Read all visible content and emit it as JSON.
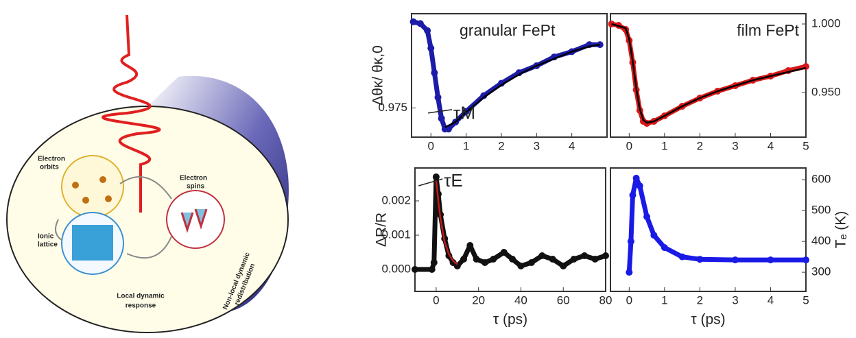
{
  "diagram": {
    "electron_orbits": [
      "Electron",
      "orbits"
    ],
    "electron_spins": [
      "Electron",
      "spins"
    ],
    "ionic_lattice": [
      "Ionic",
      "lattice"
    ],
    "local_response": [
      "Local dynamic",
      "response"
    ],
    "nonlocal": [
      "Non-local dynamic",
      "redistribution"
    ]
  },
  "chart_data": [
    {
      "type": "scatter",
      "title": "granular FePt",
      "y_label": "Δθκ/ θκ,0",
      "annotation": "τM",
      "y_axis_side": "left",
      "xlim": [
        -0.55,
        5.0
      ],
      "xticks": [
        0,
        1,
        2,
        3,
        4
      ],
      "ylim": [
        0.9667,
        1.0018
      ],
      "yticks": [
        0.975
      ],
      "series": [
        {
          "style": "markers",
          "color": "#1c1ca8",
          "x": [
            -0.5,
            -0.3,
            -0.1,
            0,
            0.1,
            0.2,
            0.3,
            0.4,
            0.5,
            0.7,
            1,
            1.5,
            2,
            2.5,
            3,
            3.5,
            4,
            4.5,
            4.8
          ],
          "values": [
            0.9995,
            0.999,
            0.997,
            0.992,
            0.985,
            0.978,
            0.972,
            0.969,
            0.969,
            0.971,
            0.974,
            0.9785,
            0.982,
            0.985,
            0.987,
            0.9895,
            0.991,
            0.993,
            0.993
          ]
        },
        {
          "style": "line",
          "color": "#000000",
          "x": [
            0.4,
            0.7,
            1,
            1.5,
            2,
            2.5,
            3,
            3.5,
            4,
            4.5,
            4.8
          ],
          "values": [
            0.9695,
            0.971,
            0.9738,
            0.978,
            0.9815,
            0.9845,
            0.987,
            0.989,
            0.991,
            0.9925,
            0.993
          ]
        }
      ]
    },
    {
      "type": "scatter",
      "title": "film FePt",
      "y_axis_side": "right",
      "xlim": [
        -0.53,
        5
      ],
      "xticks": [
        0,
        1,
        2,
        3,
        4,
        5
      ],
      "ylim": [
        0.9175,
        1.0075
      ],
      "yticks": [
        {
          "value": 1.0,
          "label": "1.000"
        },
        {
          "value": 0.95,
          "label": "0.950"
        }
      ],
      "series": [
        {
          "style": "markers",
          "color": "#d81818",
          "x": [
            -0.5,
            -0.3,
            -0.1,
            0,
            0.1,
            0.2,
            0.3,
            0.4,
            0.5,
            0.7,
            1,
            1.5,
            2,
            2.5,
            3,
            3.5,
            4,
            4.5,
            5
          ],
          "values": [
            1.0,
            0.999,
            0.996,
            0.988,
            0.972,
            0.952,
            0.937,
            0.929,
            0.9275,
            0.929,
            0.933,
            0.94,
            0.946,
            0.951,
            0.955,
            0.959,
            0.962,
            0.966,
            0.969
          ]
        },
        {
          "style": "line",
          "color": "#000000",
          "x": [
            -0.5,
            -0.1,
            0,
            0.1,
            0.2,
            0.3,
            0.4,
            0.5,
            0.7,
            1,
            1.5,
            2,
            2.5,
            3,
            3.5,
            4,
            4.5,
            5
          ],
          "values": [
            1.0,
            0.997,
            0.989,
            0.973,
            0.953,
            0.938,
            0.93,
            0.928,
            0.929,
            0.933,
            0.94,
            0.946,
            0.951,
            0.955,
            0.959,
            0.962,
            0.965,
            0.968
          ]
        }
      ]
    },
    {
      "type": "scatter",
      "y_label": "ΔR/R",
      "x_label": "τ (ps)",
      "annotation": "τE",
      "y_axis_side": "left",
      "xlim": [
        -10,
        80
      ],
      "xticks": [
        0,
        20,
        40,
        60,
        80
      ],
      "ylim": [
        -0.00064,
        0.00296
      ],
      "yticks": [
        {
          "value": 0,
          "label": "0.000"
        },
        {
          "value": 0.001,
          "label": "0.001"
        },
        {
          "value": 0.002,
          "label": "0.002"
        }
      ],
      "series": [
        {
          "style": "markers",
          "color": "#111111",
          "x": [
            -10,
            -2,
            -1,
            0,
            1,
            2,
            4,
            6,
            8,
            10,
            13,
            16,
            19,
            23,
            27,
            32,
            36,
            40,
            45,
            50,
            55,
            60,
            65,
            70,
            75,
            80
          ],
          "values": [
            0,
            0,
            0.0002,
            0.0027,
            0.0022,
            0.0016,
            0.0009,
            0.0004,
            0.0002,
            0.0001,
            0.0003,
            0.0007,
            0.0003,
            0.0002,
            0.0003,
            0.0005,
            0.0003,
            0.0001,
            0.0002,
            0.0004,
            0.0003,
            0.0001,
            0.0003,
            0.0004,
            0.0003,
            0.0004
          ]
        },
        {
          "style": "line",
          "color": "#c21a1a",
          "x": [
            0,
            1,
            2,
            4,
            6,
            8,
            10
          ],
          "values": [
            0.0026,
            0.002,
            0.0015,
            0.0008,
            0.00045,
            0.00025,
            0.00015
          ]
        }
      ]
    },
    {
      "type": "scatter",
      "y_label": "Tₑ (K)",
      "x_label": "τ (ps)",
      "y_axis_side": "right",
      "xlim": [
        -0.53,
        5
      ],
      "xticks": [
        0,
        1,
        2,
        3,
        4,
        5
      ],
      "ylim": [
        238,
        638
      ],
      "yticks": [
        300,
        400,
        500,
        600
      ],
      "series": [
        {
          "style": "markers",
          "color": "#1a1ae6",
          "x": [
            0,
            0.05,
            0.1,
            0.2,
            0.3,
            0.5,
            0.7,
            1,
            1.5,
            2,
            3,
            4,
            5
          ],
          "values": [
            300,
            400,
            550,
            605,
            580,
            480,
            420,
            380,
            350,
            342,
            340,
            340,
            340
          ]
        }
      ]
    }
  ]
}
